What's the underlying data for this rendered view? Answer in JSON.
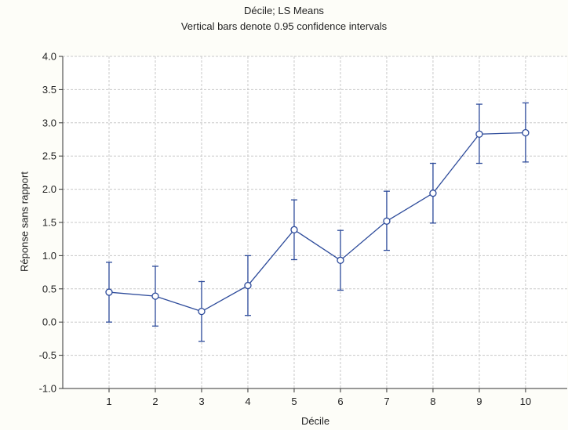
{
  "chart_data": {
    "type": "line",
    "title": "Décile; LS Means",
    "subtitle": "Vertical bars denote 0.95 confidence intervals",
    "xlabel": "Décile",
    "ylabel": "Réponse sans rapport",
    "x": [
      1,
      2,
      3,
      4,
      5,
      6,
      7,
      8,
      9,
      10
    ],
    "series": [
      {
        "values": [
          0.45,
          0.39,
          0.16,
          0.55,
          1.39,
          0.93,
          1.52,
          1.94,
          2.83,
          2.85
        ],
        "ci_low": [
          0.0,
          -0.06,
          -0.29,
          0.1,
          0.94,
          0.48,
          1.08,
          1.49,
          2.39,
          2.41
        ],
        "ci_high": [
          0.9,
          0.84,
          0.61,
          1.0,
          1.84,
          1.38,
          1.97,
          2.39,
          3.28,
          3.3
        ]
      }
    ],
    "ylim": [
      -1.0,
      4.0
    ],
    "xlim": [
      0,
      10.9
    ],
    "yticks": [
      "-1.0",
      "-0.5",
      "0.0",
      "0.5",
      "1.0",
      "1.5",
      "2.0",
      "2.5",
      "3.0",
      "3.5",
      "4.0"
    ],
    "xticks": [
      "1",
      "2",
      "3",
      "4",
      "5",
      "6",
      "7",
      "8",
      "9",
      "10"
    ],
    "grid": true,
    "line_color": "#2c4a9a",
    "grid_color": "#c8c8c8"
  }
}
